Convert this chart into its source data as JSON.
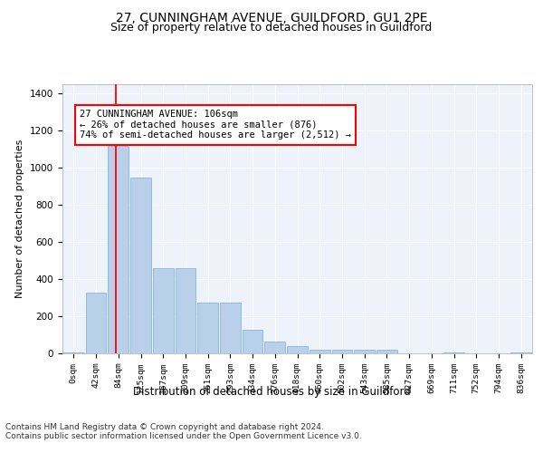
{
  "title1": "27, CUNNINGHAM AVENUE, GUILDFORD, GU1 2PE",
  "title2": "Size of property relative to detached houses in Guildford",
  "xlabel": "Distribution of detached houses by size in Guildford",
  "ylabel": "Number of detached properties",
  "categories": [
    "0sqm",
    "42sqm",
    "84sqm",
    "125sqm",
    "167sqm",
    "209sqm",
    "251sqm",
    "293sqm",
    "334sqm",
    "376sqm",
    "418sqm",
    "460sqm",
    "502sqm",
    "543sqm",
    "585sqm",
    "627sqm",
    "669sqm",
    "711sqm",
    "752sqm",
    "794sqm",
    "836sqm"
  ],
  "values": [
    5,
    325,
    1115,
    945,
    460,
    460,
    275,
    275,
    125,
    65,
    40,
    20,
    20,
    20,
    20,
    0,
    0,
    5,
    0,
    0,
    5
  ],
  "bar_color": "#b8d0ea",
  "bar_edgecolor": "#7aadd4",
  "redline_x": 1.88,
  "annotation_text": "27 CUNNINGHAM AVENUE: 106sqm\n← 26% of detached houses are smaller (876)\n74% of semi-detached houses are larger (2,512) →",
  "annotation_box_color": "white",
  "annotation_box_edgecolor": "red",
  "ylim": [
    0,
    1450
  ],
  "yticks": [
    0,
    200,
    400,
    600,
    800,
    1000,
    1200,
    1400
  ],
  "footer1": "Contains HM Land Registry data © Crown copyright and database right 2024.",
  "footer2": "Contains public sector information licensed under the Open Government Licence v3.0.",
  "bg_color": "white",
  "plot_bg_color": "#eef2fa",
  "title1_fontsize": 10,
  "title2_fontsize": 9,
  "xlabel_fontsize": 8.5,
  "ylabel_fontsize": 8,
  "footer_fontsize": 6.5,
  "annot_fontsize": 7.5
}
